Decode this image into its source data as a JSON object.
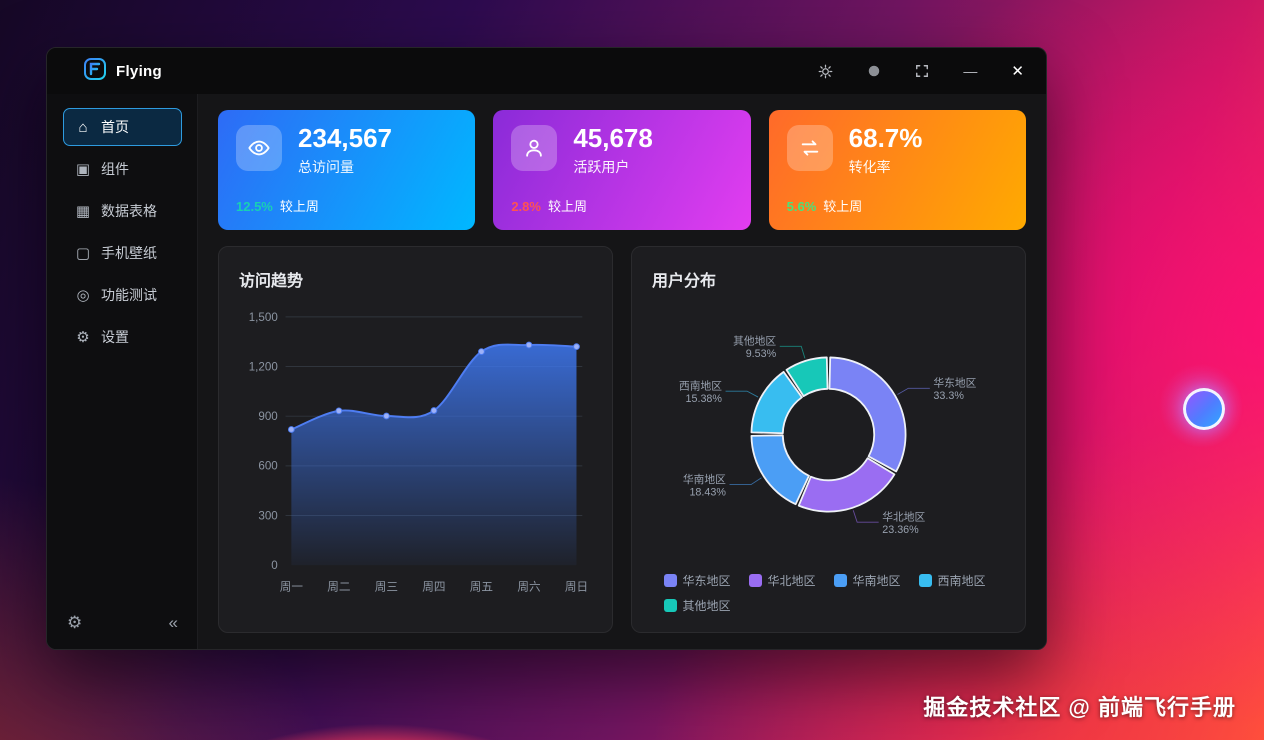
{
  "app": {
    "name": "Flying"
  },
  "titlebar": {
    "minimize_glyph": "—",
    "close_glyph": "✕"
  },
  "sidebar": {
    "items": [
      {
        "id": "home",
        "label": "首页",
        "active": true
      },
      {
        "id": "component",
        "label": "组件",
        "active": false
      },
      {
        "id": "table",
        "label": "数据表格",
        "active": false
      },
      {
        "id": "wallpaper",
        "label": "手机壁纸",
        "active": false
      },
      {
        "id": "test",
        "label": "功能测试",
        "active": false
      },
      {
        "id": "settings",
        "label": "设置",
        "active": false
      }
    ],
    "footer_gear_glyph": "⚙",
    "collapse_glyph": "«"
  },
  "stats": [
    {
      "id": "total-visits",
      "icon": "eye-icon",
      "value": "234,567",
      "label": "总访问量",
      "delta": "12.5%",
      "delta_color": "#18d0b4",
      "compare": "较上周",
      "gradient": [
        "#2e6bf6",
        "#00b8ff"
      ]
    },
    {
      "id": "active-users",
      "icon": "user-icon",
      "value": "45,678",
      "label": "活跃用户",
      "delta": "2.8%",
      "delta_color": "#ff5252",
      "compare": "较上周",
      "gradient": [
        "#8a2bd8",
        "#e23df0"
      ]
    },
    {
      "id": "conversion-rate",
      "icon": "exchange-icon",
      "value": "68.7%",
      "label": "转化率",
      "delta": "5.6%",
      "delta_color": "#49e37b",
      "compare": "较上周",
      "gradient": [
        "#ff6a2a",
        "#ffaa00"
      ]
    }
  ],
  "chart_data": [
    {
      "type": "area",
      "title": "访问趋势",
      "categories": [
        "周一",
        "周二",
        "周三",
        "周四",
        "周五",
        "周六",
        "周日"
      ],
      "values": [
        820,
        932,
        901,
        934,
        1290,
        1330,
        1320
      ],
      "ylim": [
        0,
        1500
      ],
      "yticks": [
        0,
        300,
        600,
        900,
        1200,
        1500
      ],
      "grid": true,
      "line_color": "#4e7df2",
      "area_color": "#3e78f2",
      "dot_color": "#9db1f7"
    },
    {
      "type": "pie",
      "title": "用户分布",
      "donut": true,
      "legend_position": "bottom",
      "segments": [
        {
          "name": "华东地区",
          "value": 1048,
          "percent": "33.3%",
          "color": "#7a83f5"
        },
        {
          "name": "华北地区",
          "value": 735,
          "percent": "23.36%",
          "color": "#9a6df2"
        },
        {
          "name": "华南地区",
          "value": 580,
          "percent": "18.43%",
          "color": "#4b9ef5"
        },
        {
          "name": "西南地区",
          "value": 484,
          "percent": "15.38%",
          "color": "#38bdf0"
        },
        {
          "name": "其他地区",
          "value": 300,
          "percent": "9.53%",
          "color": "#17c8b8"
        }
      ]
    }
  ],
  "watermark": "掘金技术社区 @ 前端飞行手册"
}
